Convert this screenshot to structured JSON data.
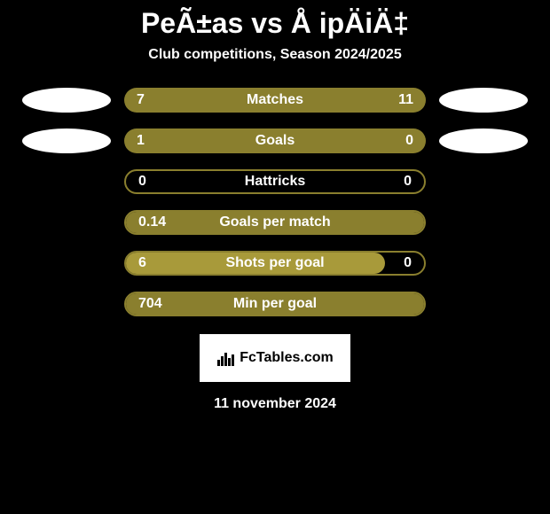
{
  "title": "PeÃ±as vs Å ipÄiÄ‡",
  "subtitle": "Club competitions, Season 2024/2025",
  "colors": {
    "bar_olive": "#8a7f2e",
    "bar_outline": "#8a7f2e",
    "ellipse_white": "#ffffff",
    "background": "#000000",
    "text": "#ffffff"
  },
  "stats": [
    {
      "label": "Matches",
      "left_value": "7",
      "right_value": "11",
      "left_pct": 38.9,
      "right_pct": 61.1,
      "show_left_ellipse": true,
      "show_right_ellipse": true,
      "left_ellipse_color": "#ffffff",
      "right_ellipse_color": "#ffffff",
      "left_fill_color": "#8a7f2e",
      "right_fill_color": "#8a7f2e",
      "bar_border": false
    },
    {
      "label": "Goals",
      "left_value": "1",
      "right_value": "0",
      "left_pct": 100,
      "right_pct": 0,
      "show_left_ellipse": true,
      "show_right_ellipse": true,
      "left_ellipse_color": "#ffffff",
      "right_ellipse_color": "#ffffff",
      "left_fill_color": "#8a7f2e",
      "right_fill_color": "#8a7f2e",
      "bar_border": false
    },
    {
      "label": "Hattricks",
      "left_value": "0",
      "right_value": "0",
      "left_pct": 0,
      "right_pct": 0,
      "show_left_ellipse": false,
      "show_right_ellipse": false,
      "left_fill_color": "#8a7f2e",
      "right_fill_color": "#8a7f2e",
      "bar_border": true
    },
    {
      "label": "Goals per match",
      "left_value": "0.14",
      "right_value": "",
      "left_pct": 100,
      "right_pct": 0,
      "show_left_ellipse": false,
      "show_right_ellipse": false,
      "left_fill_color": "#8a7f2e",
      "right_fill_color": "#8a7f2e",
      "bar_border": true
    },
    {
      "label": "Shots per goal",
      "left_value": "6",
      "right_value": "0",
      "left_pct": 87,
      "right_pct": 0,
      "show_left_ellipse": false,
      "show_right_ellipse": false,
      "left_fill_color": "#a89a3a",
      "right_fill_color": "#8a7f2e",
      "bar_border": true
    },
    {
      "label": "Min per goal",
      "left_value": "704",
      "right_value": "",
      "left_pct": 100,
      "right_pct": 0,
      "show_left_ellipse": false,
      "show_right_ellipse": false,
      "left_fill_color": "#8a7f2e",
      "right_fill_color": "#8a7f2e",
      "bar_border": true
    }
  ],
  "footer": {
    "brand": "FcTables.com",
    "date": "11 november 2024"
  }
}
